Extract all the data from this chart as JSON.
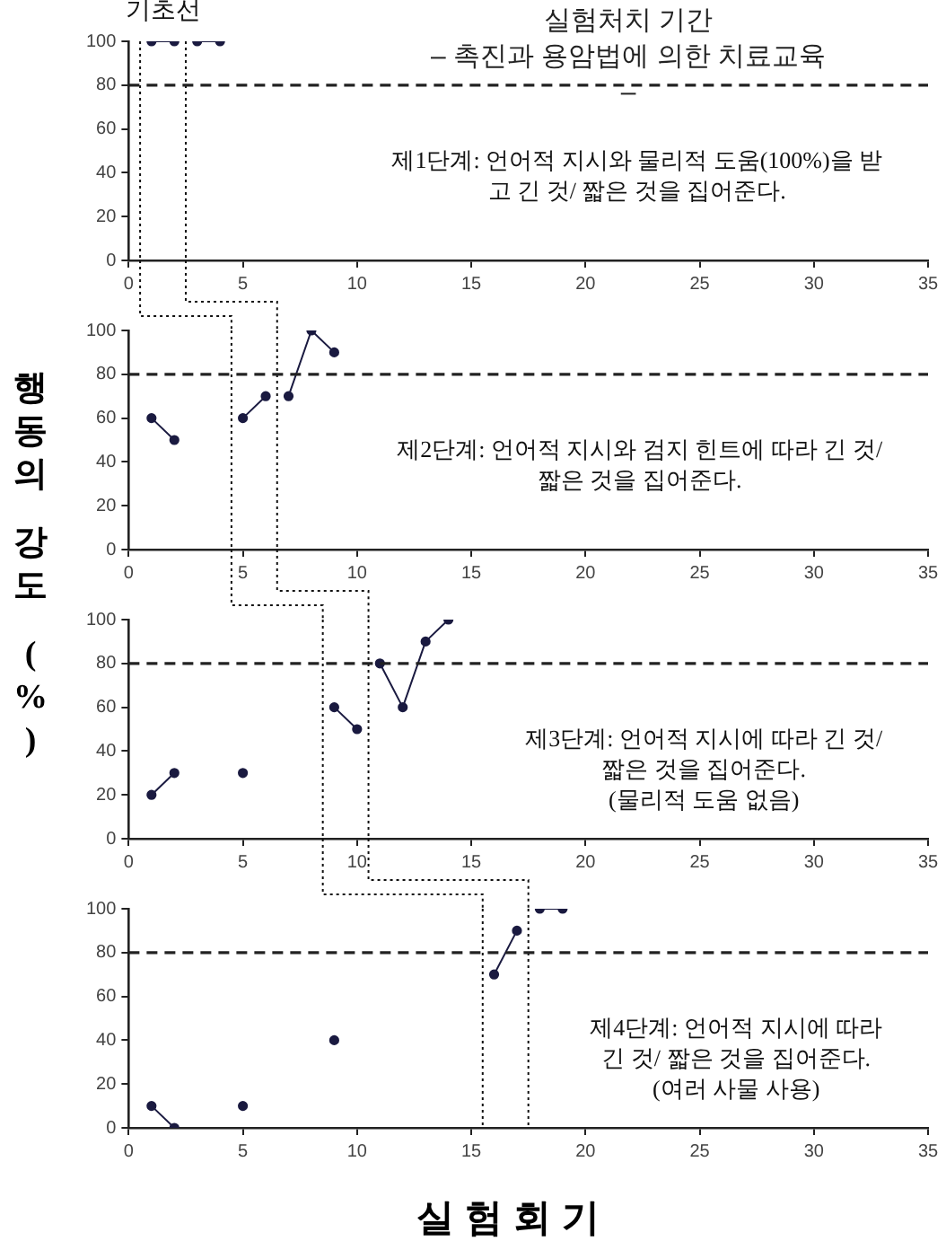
{
  "chart_data": [
    {
      "type": "line",
      "title": "실험처치 기간",
      "subtitle": "– 촉진과 용암법에 의한 치료교육\n–",
      "xlim": [
        0,
        35
      ],
      "xticks": [
        0,
        5,
        10,
        15,
        20,
        25,
        30,
        35
      ],
      "ylim": [
        0,
        100
      ],
      "yticks": [
        0,
        20,
        40,
        60,
        80,
        100
      ],
      "grid": false,
      "legend": false,
      "marker": "circle",
      "line_style": "solid",
      "series": [
        {
          "color": "#1a1a40",
          "x": [
            1,
            2
          ],
          "values": [
            100,
            100
          ]
        },
        {
          "color": "#1a1a40",
          "x": [
            3,
            4
          ],
          "values": [
            100,
            100
          ]
        }
      ],
      "ref_lines": [
        {
          "axis": "x",
          "value": 0.5,
          "line_style": "dotted",
          "color": "#111111"
        },
        {
          "axis": "x",
          "value": 2.5,
          "line_style": "dotted",
          "color": "#111111"
        },
        {
          "axis": "y",
          "value": 80,
          "line_style": "dashed",
          "color": "#222222"
        }
      ],
      "annotations": [
        {
          "text": "기초선",
          "x": 1.5,
          "y": 100
        },
        "제1단계: 언어적 지시와 물리적 도움(100%)을 받",
        "고 긴 것/ 짧은 것을 집어준다."
      ]
    },
    {
      "type": "line",
      "ylabel": "행동의 강도 (%)",
      "xlim": [
        0,
        35
      ],
      "xticks": [
        0,
        5,
        10,
        15,
        20,
        25,
        30,
        35
      ],
      "ylim": [
        0,
        100
      ],
      "yticks": [
        0,
        20,
        40,
        60,
        80,
        100
      ],
      "grid": false,
      "legend": false,
      "marker": "circle",
      "line_style": "solid",
      "series": [
        {
          "color": "#1a1a40",
          "x": [
            1,
            2
          ],
          "values": [
            60,
            50
          ]
        },
        {
          "color": "#1a1a40",
          "x": [
            5,
            6
          ],
          "values": [
            60,
            70
          ]
        },
        {
          "color": "#1a1a40",
          "x": [
            7,
            8,
            9
          ],
          "values": [
            70,
            100,
            90
          ]
        }
      ],
      "ref_lines": [
        {
          "axis": "x",
          "value": 4.5,
          "line_style": "dotted",
          "color": "#111111"
        },
        {
          "axis": "x",
          "value": 6.5,
          "line_style": "dotted",
          "color": "#111111"
        },
        {
          "axis": "y",
          "value": 80,
          "line_style": "dashed",
          "color": "#222222"
        }
      ],
      "annotations": [
        "제2단계: 언어적 지시와 검지 힌트에 따라 긴 것/",
        "짧은 것을 집어준다."
      ]
    },
    {
      "type": "line",
      "xlim": [
        0,
        35
      ],
      "xticks": [
        0,
        5,
        10,
        15,
        20,
        25,
        30,
        35
      ],
      "ylim": [
        0,
        100
      ],
      "yticks": [
        0,
        20,
        40,
        60,
        80,
        100
      ],
      "grid": false,
      "legend": false,
      "marker": "circle",
      "line_style": "solid",
      "series": [
        {
          "color": "#1a1a40",
          "x": [
            1,
            2
          ],
          "values": [
            20,
            30
          ]
        },
        {
          "color": "#1a1a40",
          "x": [
            5
          ],
          "values": [
            30
          ]
        },
        {
          "color": "#1a1a40",
          "x": [
            9,
            10
          ],
          "values": [
            60,
            50
          ]
        },
        {
          "color": "#1a1a40",
          "x": [
            11,
            12,
            13,
            14
          ],
          "values": [
            80,
            60,
            90,
            100
          ]
        }
      ],
      "ref_lines": [
        {
          "axis": "x",
          "value": 8.5,
          "line_style": "dotted",
          "color": "#111111"
        },
        {
          "axis": "x",
          "value": 10.5,
          "line_style": "dotted",
          "color": "#111111"
        },
        {
          "axis": "y",
          "value": 80,
          "line_style": "dashed",
          "color": "#222222"
        }
      ],
      "annotations": [
        "제3단계: 언어적 지시에 따라 긴 것/",
        "짧은 것을 집어준다.",
        "(물리적 도움 없음)"
      ]
    },
    {
      "type": "line",
      "xlabel": "실험회기",
      "xlim": [
        0,
        35
      ],
      "xticks": [
        0,
        5,
        10,
        15,
        20,
        25,
        30,
        35
      ],
      "ylim": [
        0,
        100
      ],
      "yticks": [
        0,
        20,
        40,
        60,
        80,
        100
      ],
      "grid": false,
      "legend": false,
      "marker": "circle",
      "line_style": "solid",
      "series": [
        {
          "color": "#1a1a40",
          "x": [
            1,
            2
          ],
          "values": [
            10,
            0
          ]
        },
        {
          "color": "#1a1a40",
          "x": [
            5
          ],
          "values": [
            10
          ]
        },
        {
          "color": "#1a1a40",
          "x": [
            9
          ],
          "values": [
            40
          ]
        },
        {
          "color": "#1a1a40",
          "x": [
            16,
            17
          ],
          "values": [
            70,
            90
          ]
        },
        {
          "color": "#1a1a40",
          "x": [
            18,
            19
          ],
          "values": [
            100,
            100
          ]
        }
      ],
      "ref_lines": [
        {
          "axis": "x",
          "value": 15.5,
          "line_style": "dotted",
          "color": "#111111"
        },
        {
          "axis": "x",
          "value": 17.5,
          "line_style": "dotted",
          "color": "#111111"
        },
        {
          "axis": "y",
          "value": 80,
          "line_style": "dashed",
          "color": "#222222"
        }
      ],
      "annotations": [
        "제4단계: 언어적 지시에 따라",
        "긴 것/ 짧은 것을 집어준다.",
        "(여러 사물 사용)"
      ]
    }
  ]
}
